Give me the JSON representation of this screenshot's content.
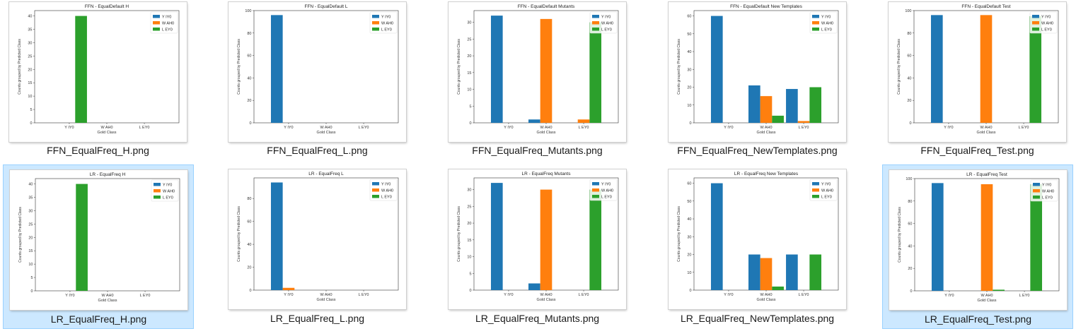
{
  "colors": {
    "blue": "#1f77b4",
    "orange": "#ff7f0e",
    "green": "#2ca02c"
  },
  "legend": [
    "Y IY0",
    "W AH0",
    "L EY0"
  ],
  "categories": [
    "Y IY0",
    "W AH0",
    "L EY0"
  ],
  "xlabel": "Gold Class",
  "ylabel": "Counts grouped by Predicted Class",
  "files": [
    {
      "filename": "FFN_EqualFreq_H.png",
      "selected": false
    },
    {
      "filename": "FFN_EqualFreq_L.png",
      "selected": false
    },
    {
      "filename": "FFN_EqualFreq_Mutants.png",
      "selected": false
    },
    {
      "filename": "FFN_EqualFreq_NewTemplates.png",
      "selected": false
    },
    {
      "filename": "FFN_EqualFreq_Test.png",
      "selected": false
    },
    {
      "filename": "LR_EqualFreq_H.png",
      "selected": true
    },
    {
      "filename": "LR_EqualFreq_L.png",
      "selected": false
    },
    {
      "filename": "LR_EqualFreq_Mutants.png",
      "selected": false
    },
    {
      "filename": "LR_EqualFreq_NewTemplates.png",
      "selected": false
    },
    {
      "filename": "LR_EqualFreq_Test.png",
      "selected": true
    }
  ],
  "chart_data": [
    {
      "type": "bar",
      "title": "FFN - EqualDefault H",
      "categories": [
        "Y IY0",
        "W AH0",
        "L EY0"
      ],
      "ylim": [
        0,
        42
      ],
      "yticks": [
        0,
        5,
        10,
        15,
        20,
        25,
        30,
        35,
        40
      ],
      "series": [
        {
          "name": "Y IY0",
          "values": [
            0,
            0,
            0
          ]
        },
        {
          "name": "W AH0",
          "values": [
            0,
            0,
            0
          ]
        },
        {
          "name": "L EY0",
          "values": [
            40,
            0,
            0
          ]
        }
      ]
    },
    {
      "type": "bar",
      "title": "FFN - EqualDefault L",
      "categories": [
        "Y IY0",
        "W AH0",
        "L EY0"
      ],
      "ylim": [
        0,
        100
      ],
      "yticks": [
        0,
        20,
        40,
        60,
        80,
        100
      ],
      "series": [
        {
          "name": "Y IY0",
          "values": [
            96,
            0,
            0
          ]
        },
        {
          "name": "W AH0",
          "values": [
            0,
            0,
            0
          ]
        },
        {
          "name": "L EY0",
          "values": [
            0,
            0,
            0
          ]
        }
      ]
    },
    {
      "type": "bar",
      "title": "FFN - EqualDefault Mutants",
      "categories": [
        "Y IY0",
        "W AH0",
        "L EY0"
      ],
      "ylim": [
        0,
        33.5
      ],
      "yticks": [
        0,
        5,
        10,
        15,
        20,
        25,
        30
      ],
      "series": [
        {
          "name": "Y IY0",
          "values": [
            32,
            1,
            0
          ]
        },
        {
          "name": "W AH0",
          "values": [
            0,
            31,
            1
          ]
        },
        {
          "name": "L EY0",
          "values": [
            0,
            0,
            30
          ]
        }
      ]
    },
    {
      "type": "bar",
      "title": "FFN - EqualDefault New Templates",
      "categories": [
        "Y IY0",
        "W AH0",
        "L EY0"
      ],
      "ylim": [
        0,
        63
      ],
      "yticks": [
        0,
        10,
        20,
        30,
        40,
        50,
        60
      ],
      "series": [
        {
          "name": "Y IY0",
          "values": [
            60,
            21,
            19
          ]
        },
        {
          "name": "W AH0",
          "values": [
            0,
            15,
            1
          ]
        },
        {
          "name": "L EY0",
          "values": [
            0,
            4,
            20
          ]
        }
      ]
    },
    {
      "type": "bar",
      "title": "FFN - EqualDefault Test",
      "categories": [
        "Y IY0",
        "W AH0",
        "L EY0"
      ],
      "ylim": [
        0,
        100
      ],
      "yticks": [
        0,
        20,
        40,
        60,
        80,
        100
      ],
      "series": [
        {
          "name": "Y IY0",
          "values": [
            96,
            0,
            0
          ]
        },
        {
          "name": "W AH0",
          "values": [
            0,
            96,
            0
          ]
        },
        {
          "name": "L EY0",
          "values": [
            0,
            0,
            95
          ]
        }
      ]
    },
    {
      "type": "bar",
      "title": "LR - EqualFreq H",
      "categories": [
        "Y IY0",
        "W AH0",
        "L EY0"
      ],
      "ylim": [
        0,
        42
      ],
      "yticks": [
        0,
        5,
        10,
        15,
        20,
        25,
        30,
        35,
        40
      ],
      "series": [
        {
          "name": "Y IY0",
          "values": [
            0,
            0,
            0
          ]
        },
        {
          "name": "W AH0",
          "values": [
            0,
            0,
            0
          ]
        },
        {
          "name": "L EY0",
          "values": [
            40,
            0,
            0
          ]
        }
      ]
    },
    {
      "type": "bar",
      "title": "LR - EqualFreq L",
      "categories": [
        "Y IY0",
        "W AH0",
        "L EY0"
      ],
      "ylim": [
        0,
        98
      ],
      "yticks": [
        0,
        20,
        40,
        60,
        80
      ],
      "series": [
        {
          "name": "Y IY0",
          "values": [
            94,
            0,
            0
          ]
        },
        {
          "name": "W AH0",
          "values": [
            2,
            0,
            0
          ]
        },
        {
          "name": "L EY0",
          "values": [
            0,
            0,
            0
          ]
        }
      ]
    },
    {
      "type": "bar",
      "title": "LR - EqualFreq Mutants",
      "categories": [
        "Y IY0",
        "W AH0",
        "L EY0"
      ],
      "ylim": [
        0,
        33.5
      ],
      "yticks": [
        0,
        5,
        10,
        15,
        20,
        25,
        30
      ],
      "series": [
        {
          "name": "Y IY0",
          "values": [
            32,
            2,
            0
          ]
        },
        {
          "name": "W AH0",
          "values": [
            0,
            30,
            0
          ]
        },
        {
          "name": "L EY0",
          "values": [
            0,
            0,
            30
          ]
        }
      ]
    },
    {
      "type": "bar",
      "title": "LR - EqualFreq New Templates",
      "categories": [
        "Y IY0",
        "W AH0",
        "L EY0"
      ],
      "ylim": [
        0,
        63
      ],
      "yticks": [
        0,
        10,
        20,
        30,
        40,
        50,
        60
      ],
      "series": [
        {
          "name": "Y IY0",
          "values": [
            60,
            20,
            20
          ]
        },
        {
          "name": "W AH0",
          "values": [
            0,
            18,
            0
          ]
        },
        {
          "name": "L EY0",
          "values": [
            0,
            2,
            20
          ]
        }
      ]
    },
    {
      "type": "bar",
      "title": "LR - EqualFreq Test",
      "categories": [
        "Y IY0",
        "W AH0",
        "L EY0"
      ],
      "ylim": [
        0,
        100
      ],
      "yticks": [
        0,
        20,
        40,
        60,
        80,
        100
      ],
      "series": [
        {
          "name": "Y IY0",
          "values": [
            96,
            0,
            0
          ]
        },
        {
          "name": "W AH0",
          "values": [
            0,
            95,
            0
          ]
        },
        {
          "name": "L EY0",
          "values": [
            0,
            1,
            95
          ]
        }
      ]
    }
  ]
}
